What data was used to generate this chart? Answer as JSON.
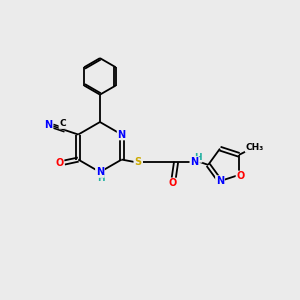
{
  "bg_color": "#ebebeb",
  "atom_colors": {
    "C": "#000000",
    "N": "#0000ff",
    "O": "#ff0000",
    "S": "#ccaa00",
    "H": "#20b0a0"
  },
  "lw": 1.3,
  "fs": 7.0,
  "fs_small": 6.5
}
